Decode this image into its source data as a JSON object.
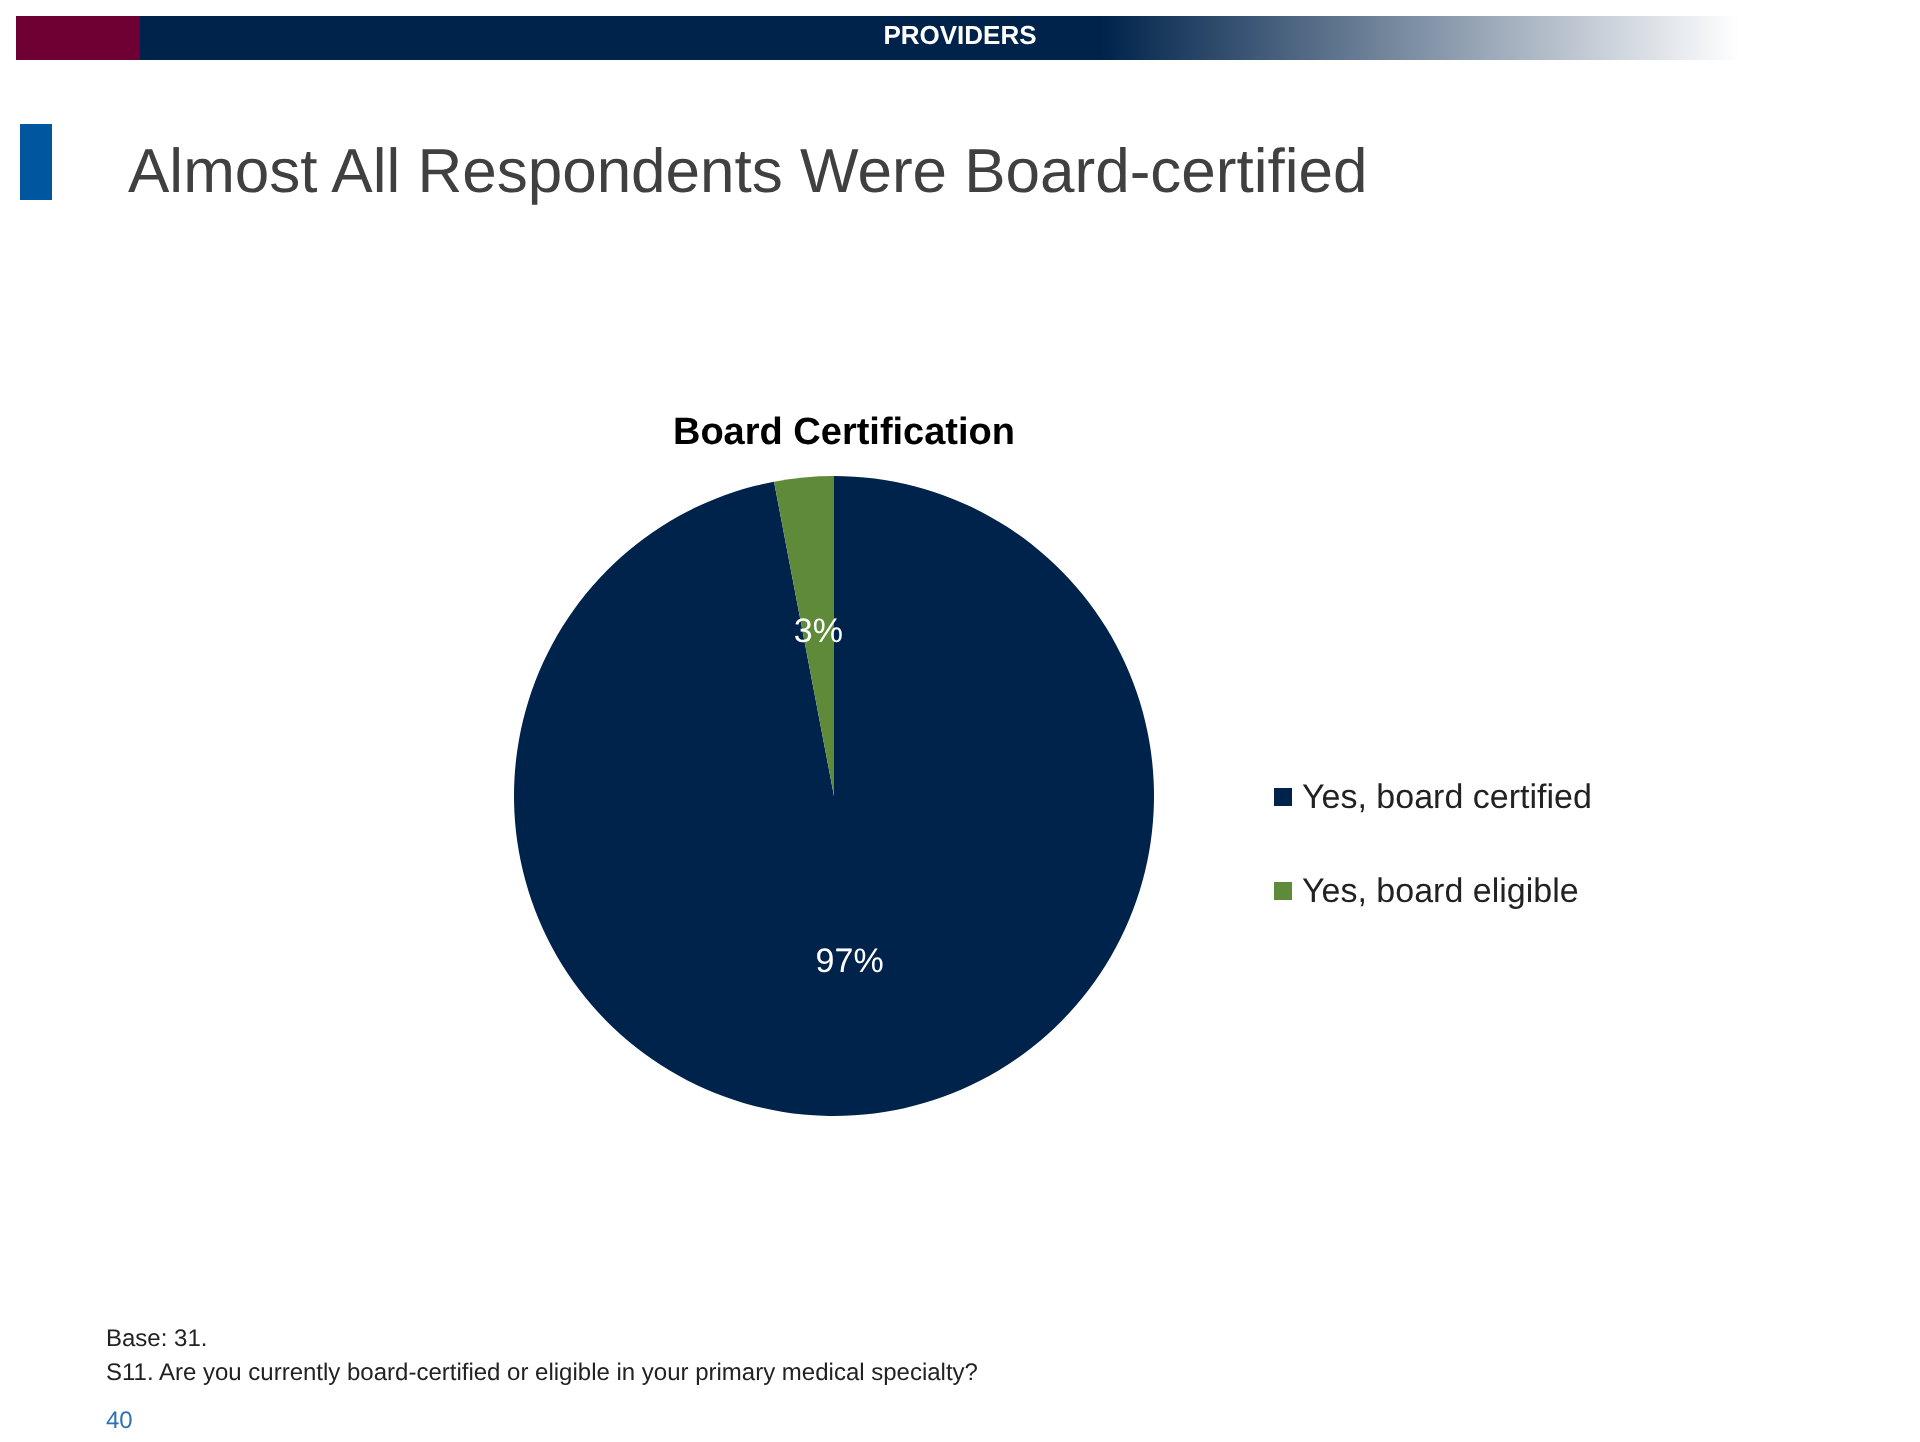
{
  "chart_data": {
    "type": "pie",
    "title": "Board Certification",
    "categories": [
      "Yes, board certified",
      "Yes, board eligible"
    ],
    "values": [
      97,
      3
    ],
    "colors": [
      "#00234b",
      "#5f8a3a"
    ],
    "value_labels": [
      "97%",
      "3%"
    ],
    "legend": "right",
    "annotations": [
      "PROVIDERS",
      "Almost All Respondents Were Board-certified",
      "Base: 31.",
      "S11. Are you currently board-certified or eligible in your primary medical specialty?",
      "40"
    ]
  }
}
